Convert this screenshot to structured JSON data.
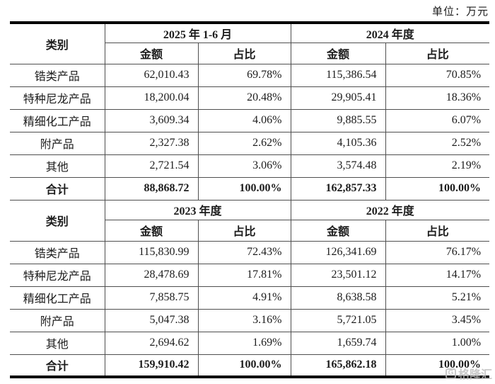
{
  "unit_label": "单位：万元",
  "columns": {
    "category": "类别",
    "amount": "金额",
    "share": "占比"
  },
  "tables": [
    {
      "periods": [
        "2025 年 1-6 月",
        "2024 年度"
      ],
      "rows": [
        {
          "category": "锆类产品",
          "values": [
            "62,010.43",
            "69.78%",
            "115,386.54",
            "70.85%"
          ],
          "total": false
        },
        {
          "category": "特种尼龙产品",
          "values": [
            "18,200.04",
            "20.48%",
            "29,905.41",
            "18.36%"
          ],
          "total": false
        },
        {
          "category": "精细化工产品",
          "values": [
            "3,609.34",
            "4.06%",
            "9,885.55",
            "6.07%"
          ],
          "total": false
        },
        {
          "category": "附产品",
          "values": [
            "2,327.38",
            "2.62%",
            "4,105.36",
            "2.52%"
          ],
          "total": false
        },
        {
          "category": "其他",
          "values": [
            "2,721.54",
            "3.06%",
            "3,574.48",
            "2.19%"
          ],
          "total": false
        },
        {
          "category": "合计",
          "values": [
            "88,868.72",
            "100.00%",
            "162,857.33",
            "100.00%"
          ],
          "total": true
        }
      ]
    },
    {
      "periods": [
        "2023 年度",
        "2022 年度"
      ],
      "rows": [
        {
          "category": "锆类产品",
          "values": [
            "115,830.99",
            "72.43%",
            "126,341.69",
            "76.17%"
          ],
          "total": false
        },
        {
          "category": "特种尼龙产品",
          "values": [
            "28,478.69",
            "17.81%",
            "23,501.12",
            "14.17%"
          ],
          "total": false
        },
        {
          "category": "精细化工产品",
          "values": [
            "7,858.75",
            "4.91%",
            "8,638.58",
            "5.21%"
          ],
          "total": false
        },
        {
          "category": "附产品",
          "values": [
            "5,047.38",
            "3.16%",
            "5,721.05",
            "3.45%"
          ],
          "total": false
        },
        {
          "category": "其他",
          "values": [
            "2,694.62",
            "1.69%",
            "1,659.74",
            "1.00%"
          ],
          "total": false
        },
        {
          "category": "合计",
          "values": [
            "159,910.42",
            "100.00%",
            "165,862.18",
            "100.00%"
          ],
          "total": true
        }
      ]
    }
  ],
  "watermark": {
    "logo": "G",
    "text": "格隆汇"
  }
}
